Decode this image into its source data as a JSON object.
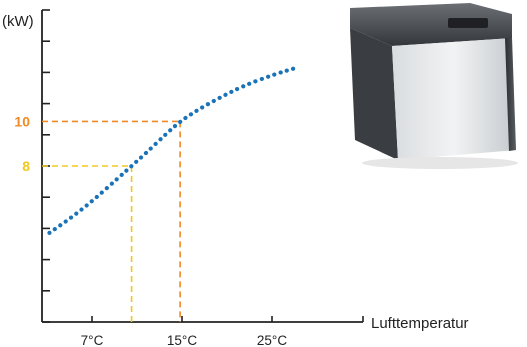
{
  "chart_data": {
    "type": "line",
    "ylabel": "(kW)",
    "xlabel": "Lufttemperatur",
    "x_ticks": [
      "7°C",
      "15°C",
      "25°C"
    ],
    "highlighted_y_ticks": [
      {
        "label": "10",
        "value": 10,
        "x_value": 17.5,
        "color": "#f08a24"
      },
      {
        "label": "8",
        "value": 8,
        "x_value": 11,
        "color": "#f2c81e"
      }
    ],
    "series": [
      {
        "color": "#1a73b8",
        "style": "dotted",
        "points": [
          [
            0,
            5
          ],
          [
            3,
            5.7
          ],
          [
            6,
            6.5
          ],
          [
            9,
            7.4
          ],
          [
            11,
            8
          ],
          [
            13,
            8.6
          ],
          [
            15.5,
            9.4
          ],
          [
            17.5,
            10
          ],
          [
            20,
            10.55
          ],
          [
            23,
            11.1
          ],
          [
            26,
            11.6
          ],
          [
            30,
            12.1
          ],
          [
            33,
            12.4
          ]
        ]
      }
    ],
    "xlim": [
      -1,
      42
    ],
    "ylim": [
      1,
      15
    ],
    "y_tick_count": 10,
    "grid": false,
    "legend": "none",
    "axis_color": "#222222",
    "illustration": "heat-pump-unit-photo"
  }
}
